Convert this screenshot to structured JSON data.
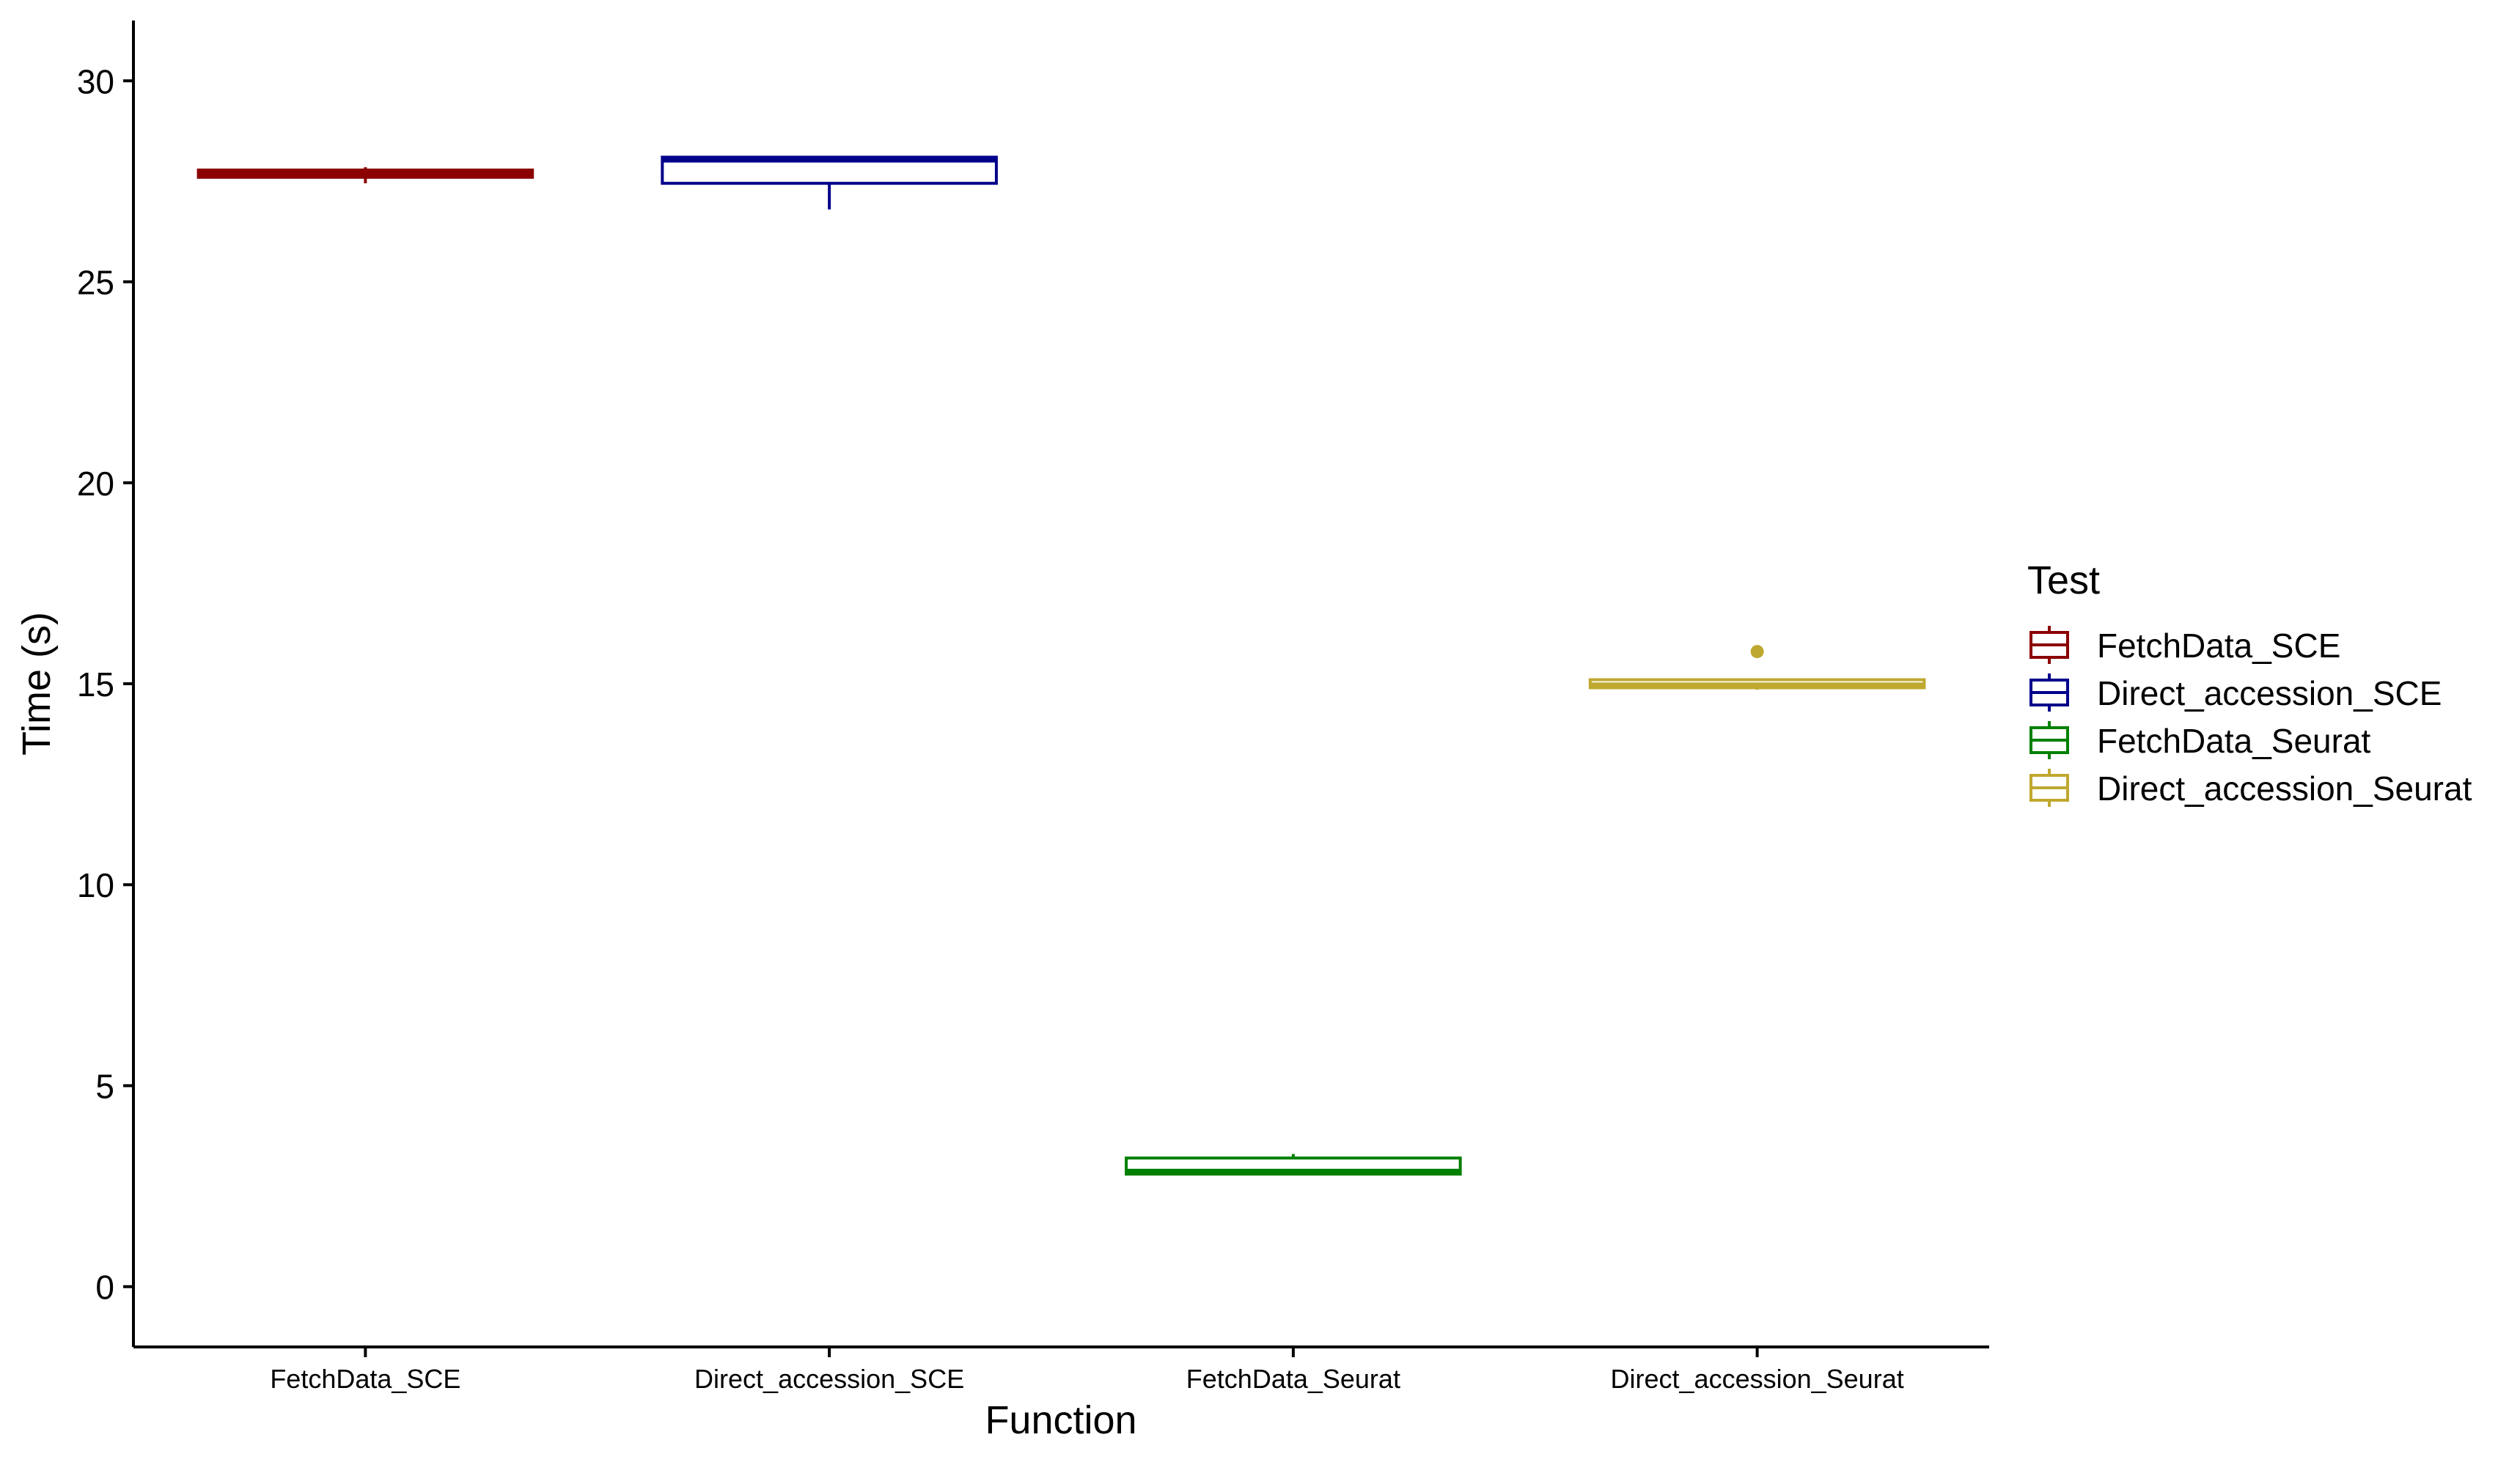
{
  "chart_data": {
    "type": "boxplot",
    "xlabel": "Function",
    "ylabel": "Time (s)",
    "ylim": [
      -1.5,
      31.5
    ],
    "yticks": [
      0,
      5,
      10,
      15,
      20,
      25,
      30
    ],
    "categories": [
      "FetchData_SCE",
      "Direct_accession_SCE",
      "FetchData_Seurat",
      "Direct_accession_Seurat"
    ],
    "legend": {
      "title": "Test",
      "placement": "right",
      "entries": [
        "FetchData_SCE",
        "Direct_accession_SCE",
        "FetchData_Seurat",
        "Direct_accession_Seurat"
      ]
    },
    "grid": false,
    "series": [
      {
        "name": "FetchData_SCE",
        "color": "#8B0000",
        "min": 27.45,
        "q1": 27.6,
        "median": 27.7,
        "q3": 27.78,
        "max": 27.85,
        "outliers": []
      },
      {
        "name": "Direct_accession_SCE",
        "color": "#00008B",
        "min": 26.8,
        "q1": 27.45,
        "median": 28.05,
        "q3": 28.1,
        "max": 28.1,
        "outliers": []
      },
      {
        "name": "FetchData_Seurat",
        "color": "#008000",
        "min": 2.78,
        "q1": 2.8,
        "median": 2.85,
        "q3": 3.2,
        "max": 3.3,
        "outliers": []
      },
      {
        "name": "Direct_accession_Seurat",
        "color": "#BFA830",
        "min": 14.85,
        "q1": 14.9,
        "median": 14.95,
        "q3": 15.1,
        "max": 15.1,
        "outliers": [
          15.8
        ]
      }
    ]
  }
}
